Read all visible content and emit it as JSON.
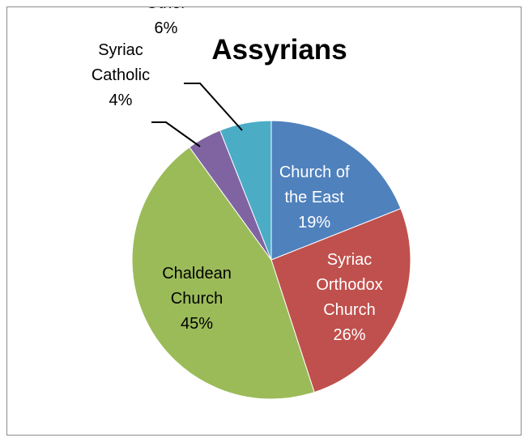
{
  "chart_data": {
    "type": "pie",
    "title": "Assyrians",
    "slices": [
      {
        "name": "Church of the East",
        "label_lines": [
          "Church of",
          "the East"
        ],
        "value": 19,
        "value_label": "19%",
        "color": "#4f81bd",
        "label_color": "#ffffff"
      },
      {
        "name": "Syriac Orthodox Church",
        "label_lines": [
          "Syriac",
          "Orthodox",
          "Church"
        ],
        "value": 26,
        "value_label": "26%",
        "color": "#c0504d",
        "label_color": "#ffffff"
      },
      {
        "name": "Chaldean Church",
        "label_lines": [
          "Chaldean",
          "Church"
        ],
        "value": 45,
        "value_label": "45%",
        "color": "#9bbb59",
        "label_color": "#000000"
      },
      {
        "name": "Syriac Catholic",
        "label_lines": [
          "Syriac",
          "Catholic"
        ],
        "value": 4,
        "value_label": "4%",
        "color": "#8064a2",
        "label_color": "#000000"
      },
      {
        "name": "Other",
        "label_lines": [
          "Other"
        ],
        "value": 6,
        "value_label": "6%",
        "color": "#4bacc6",
        "label_color": "#000000"
      }
    ],
    "legend": "none"
  }
}
